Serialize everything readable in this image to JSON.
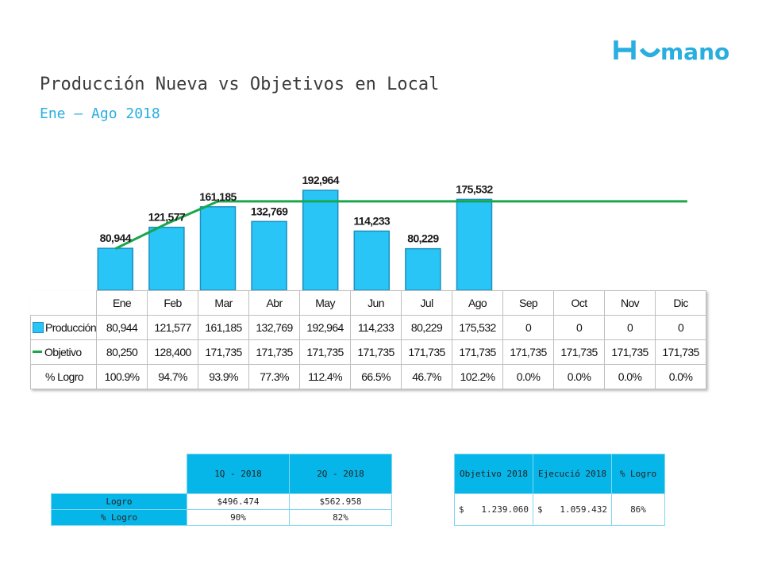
{
  "brand": {
    "name": "Humano",
    "color": "#29aee0"
  },
  "title": "Producción Nueva vs Objetivos en Local",
  "subtitle": "Ene – Ago 2018",
  "chart_data": {
    "type": "bar",
    "categories": [
      "Ene",
      "Feb",
      "Mar",
      "Abr",
      "May",
      "Jun",
      "Jul",
      "Ago",
      "Sep",
      "Oct",
      "Nov",
      "Dic"
    ],
    "series": [
      {
        "name": "Producción",
        "kind": "bar",
        "color": "#29c5f6",
        "values": [
          80944,
          121577,
          161185,
          132769,
          192964,
          114233,
          80229,
          175532,
          0,
          0,
          0,
          0
        ],
        "labels": [
          "80,944",
          "121,577",
          "161,185",
          "132,769",
          "192,964",
          "114,233",
          "80,229",
          "175,532",
          "0",
          "0",
          "0",
          "0"
        ]
      },
      {
        "name": "Objetivo",
        "kind": "line",
        "color": "#1aa64b",
        "values": [
          80250,
          128400,
          171735,
          171735,
          171735,
          171735,
          171735,
          171735,
          171735,
          171735,
          171735,
          171735
        ],
        "labels": [
          "80,250",
          "128,400",
          "171,735",
          "171,735",
          "171,735",
          "171,735",
          "171,735",
          "171,735",
          "171,735",
          "171,735",
          "171,735",
          "171,735"
        ]
      },
      {
        "name": "% Logro",
        "kind": "table",
        "labels": [
          "100.9%",
          "94.7%",
          "93.9%",
          "77.3%",
          "112.4%",
          "66.5%",
          "46.7%",
          "102.2%",
          "0.0%",
          "0.0%",
          "0.0%",
          "0.0%"
        ]
      }
    ],
    "ylim": [
      0,
      215000
    ]
  },
  "quarter_table": {
    "headers": [
      "1Q - 2018",
      "2Q - 2018"
    ],
    "rows": [
      {
        "label": "Logro",
        "values": [
          "$496.474",
          "$562.958"
        ]
      },
      {
        "label": "% Logro",
        "values": [
          "90%",
          "82%"
        ]
      }
    ]
  },
  "objective_table": {
    "headers": [
      "Objetivo 2018",
      "Ejecució 2018",
      "% Logro"
    ],
    "currency": "$",
    "objetivo": "1.239.060",
    "ejecucion": "1.059.432",
    "logro": "86%"
  }
}
